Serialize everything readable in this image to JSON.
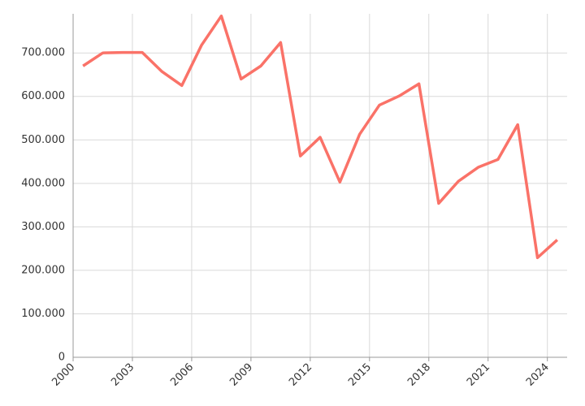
{
  "chart_data": {
    "type": "line",
    "categories": [
      "2000",
      "2001",
      "2002",
      "2003",
      "2004",
      "2005",
      "2006",
      "2007",
      "2008",
      "2009",
      "2010",
      "2011",
      "2012",
      "2013",
      "2014",
      "2015",
      "2016",
      "2017",
      "2018",
      "2019",
      "2020",
      "2021",
      "2022",
      "2023",
      "2024"
    ],
    "values": [
      670000,
      700000,
      701000,
      701000,
      657000,
      625000,
      718000,
      785000,
      640000,
      670000,
      724000,
      463000,
      506000,
      403000,
      513000,
      580000,
      601000,
      629000,
      354000,
      405000,
      437000,
      455000,
      535000,
      229000,
      270000
    ],
    "color": "#fa7268",
    "ylim": [
      0,
      790000
    ],
    "yticks": [
      0,
      {
        "value": 100000,
        "label": "100.000"
      },
      {
        "value": 200000,
        "label": "200.000"
      },
      {
        "value": 300000,
        "label": "300.000"
      },
      {
        "value": 400000,
        "label": "400.000"
      },
      {
        "value": 500000,
        "label": "500.000"
      },
      {
        "value": 600000,
        "label": "600.000"
      },
      {
        "value": 700000,
        "label": "700.000"
      }
    ],
    "grid": true
  }
}
